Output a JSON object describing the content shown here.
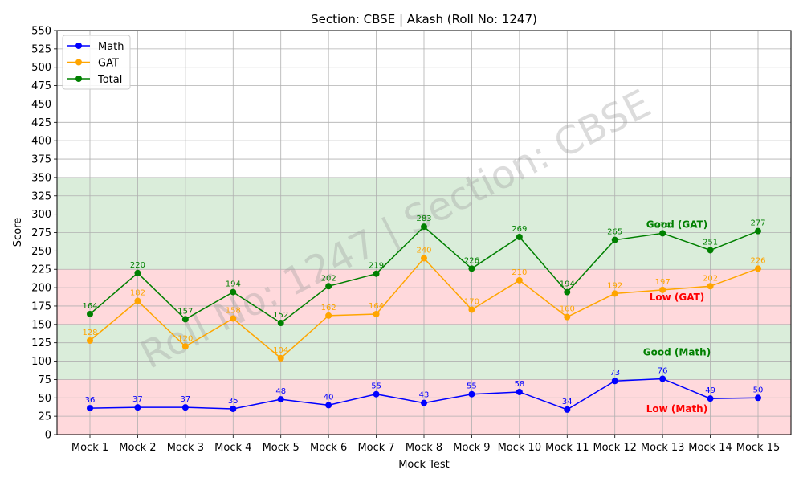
{
  "chart_data": {
    "type": "line",
    "title": "Section: CBSE | Akash (Roll No: 1247)",
    "xlabel": "Mock Test",
    "ylabel": "Score",
    "ylim": [
      0,
      550
    ],
    "ytick_step": 25,
    "grid": true,
    "legend_position": "top-left",
    "watermark": "Roll No: 1247 | Section: CBSE",
    "categories": [
      "Mock 1",
      "Mock 2",
      "Mock 3",
      "Mock 4",
      "Mock 5",
      "Mock 6",
      "Mock 7",
      "Mock 8",
      "Mock 9",
      "Mock 10",
      "Mock 11",
      "Mock 12",
      "Mock 13",
      "Mock 14",
      "Mock 15"
    ],
    "series": [
      {
        "name": "Math",
        "color": "#0000ff",
        "values": [
          36,
          37,
          37,
          35,
          48,
          40,
          55,
          43,
          55,
          58,
          34,
          73,
          76,
          49,
          50
        ]
      },
      {
        "name": "GAT",
        "color": "#ffa500",
        "values": [
          128,
          182,
          120,
          158,
          104,
          162,
          164,
          240,
          170,
          210,
          160,
          192,
          197,
          202,
          226
        ]
      },
      {
        "name": "Total",
        "color": "#008000",
        "values": [
          164,
          220,
          157,
          194,
          152,
          202,
          219,
          283,
          226,
          269,
          194,
          265,
          274,
          251,
          277
        ]
      }
    ],
    "bands": [
      {
        "from": 0,
        "to": 75,
        "color": "#ffb3ba",
        "label": "Low (Math)",
        "label_color": "#ff0000",
        "label_y": 35
      },
      {
        "from": 75,
        "to": 150,
        "color": "#b5dbb5",
        "label": "Good (Math)",
        "label_color": "#008000",
        "label_y": 112
      },
      {
        "from": 150,
        "to": 225,
        "color": "#ffb3ba",
        "label": "Low (GAT)",
        "label_color": "#ff0000",
        "label_y": 187
      },
      {
        "from": 225,
        "to": 350,
        "color": "#b5dbb5",
        "label": "Good (GAT)",
        "label_color": "#008000",
        "label_y": 286
      }
    ]
  }
}
